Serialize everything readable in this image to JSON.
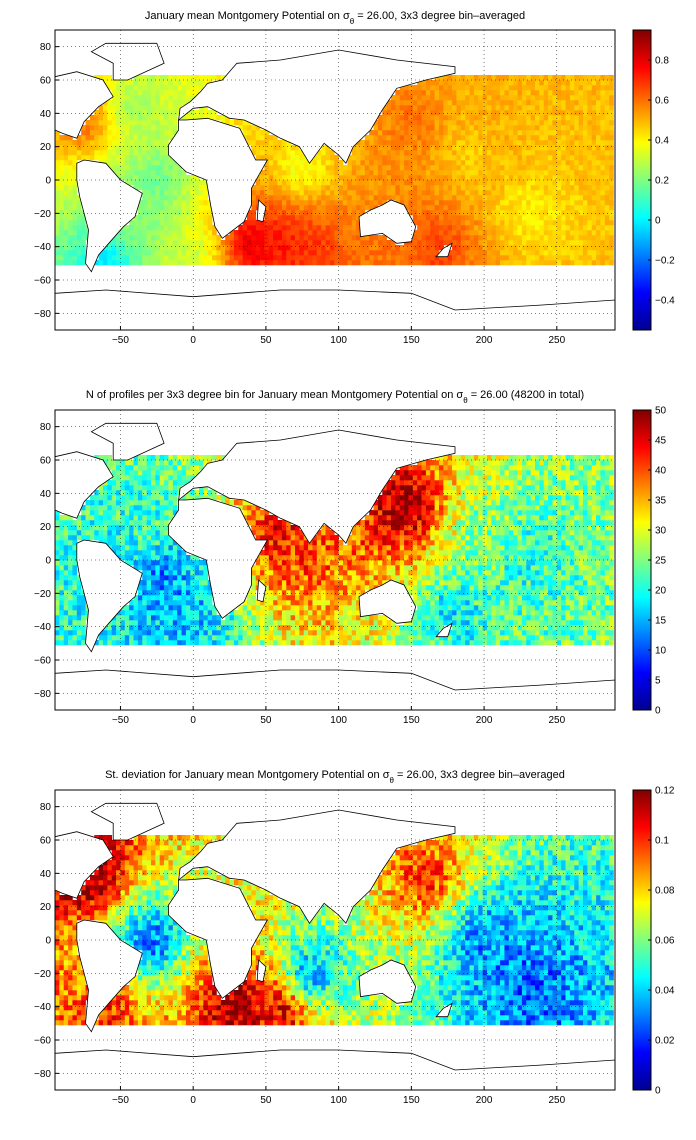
{
  "chart_data": [
    {
      "type": "heatmap",
      "title_prefix": "January mean Montgomery Potential on ",
      "title_sigma": "σ",
      "title_sub": "θ",
      "title_suffix": " = 26.00, 3x3 degree bin–averaged",
      "xlim": [
        -95,
        290
      ],
      "ylim": [
        -90,
        90
      ],
      "x_ticks": [
        -50,
        0,
        50,
        100,
        150,
        200,
        250
      ],
      "y_ticks": [
        -80,
        -60,
        -40,
        -20,
        0,
        20,
        40,
        60,
        80
      ],
      "colorbar": {
        "min": -0.55,
        "max": 0.95,
        "ticks": [
          -0.4,
          -0.2,
          0,
          0.2,
          0.4,
          0.6,
          0.8
        ]
      },
      "grid": true,
      "cells": [
        {
          "x": 40,
          "y": -38,
          "v": 0.85
        },
        {
          "x": 60,
          "y": -38,
          "v": 0.75
        },
        {
          "x": 80,
          "y": -40,
          "v": 0.7
        },
        {
          "x": -75,
          "y": 35,
          "v": 0.62
        },
        {
          "x": 170,
          "y": -40,
          "v": 0.68
        },
        {
          "x": 150,
          "y": 35,
          "v": 0.6
        },
        {
          "x": 210,
          "y": 30,
          "v": 0.5
        },
        {
          "x": 190,
          "y": 15,
          "v": 0.45
        },
        {
          "x": 230,
          "y": -20,
          "v": 0.4
        },
        {
          "x": -25,
          "y": 0,
          "v": 0.15
        },
        {
          "x": -30,
          "y": -20,
          "v": 0.2
        },
        {
          "x": 75,
          "y": 5,
          "v": 0.35
        },
        {
          "x": -40,
          "y": 45,
          "v": 0.25
        },
        {
          "x": 0,
          "y": -45,
          "v": 0.3
        },
        {
          "x": -60,
          "y": -50,
          "v": -0.05
        }
      ]
    },
    {
      "type": "heatmap",
      "title_prefix": "N of profiles per 3x3 degree bin for January mean Montgomery Potential on ",
      "title_sigma": "σ",
      "title_sub": "θ",
      "title_suffix": " = 26.00 (48200 in total)",
      "xlim": [
        -95,
        290
      ],
      "ylim": [
        -90,
        90
      ],
      "x_ticks": [
        -50,
        0,
        50,
        100,
        150,
        200,
        250
      ],
      "y_ticks": [
        -80,
        -60,
        -40,
        -20,
        0,
        20,
        40,
        60,
        80
      ],
      "colorbar": {
        "min": 0,
        "max": 50,
        "ticks": [
          0,
          5,
          10,
          15,
          20,
          25,
          30,
          35,
          40,
          45,
          50
        ]
      },
      "grid": true,
      "cells": [
        {
          "x": 145,
          "y": 32,
          "v": 50
        },
        {
          "x": 60,
          "y": 15,
          "v": 45
        },
        {
          "x": 75,
          "y": 10,
          "v": 40
        },
        {
          "x": 200,
          "y": 20,
          "v": 25
        },
        {
          "x": -30,
          "y": 20,
          "v": 22
        },
        {
          "x": 0,
          "y": -30,
          "v": 15
        },
        {
          "x": 180,
          "y": -30,
          "v": 18
        },
        {
          "x": 230,
          "y": 0,
          "v": 20
        },
        {
          "x": -20,
          "y": -10,
          "v": 12
        }
      ]
    },
    {
      "type": "heatmap",
      "title_prefix": "St. deviation for January mean Montgomery Potential on ",
      "title_sigma": "σ",
      "title_sub": "θ",
      "title_suffix": " = 26.00, 3x3 degree bin–averaged",
      "xlim": [
        -95,
        290
      ],
      "ylim": [
        -90,
        90
      ],
      "x_ticks": [
        -50,
        0,
        50,
        100,
        150,
        200,
        250
      ],
      "y_ticks": [
        -80,
        -60,
        -40,
        -20,
        0,
        20,
        40,
        60,
        80
      ],
      "colorbar": {
        "min": 0,
        "max": 0.12,
        "ticks": [
          0,
          0.02,
          0.04,
          0.06,
          0.08,
          0.1,
          0.12
        ]
      },
      "grid": true,
      "cells": [
        {
          "x": -70,
          "y": 40,
          "v": 0.12
        },
        {
          "x": 30,
          "y": -40,
          "v": 0.12
        },
        {
          "x": 60,
          "y": -42,
          "v": 0.11
        },
        {
          "x": -60,
          "y": -45,
          "v": 0.1
        },
        {
          "x": 160,
          "y": 38,
          "v": 0.1
        },
        {
          "x": 200,
          "y": 0,
          "v": 0.03
        },
        {
          "x": -30,
          "y": 0,
          "v": 0.025
        },
        {
          "x": 80,
          "y": -20,
          "v": 0.03
        },
        {
          "x": 230,
          "y": -30,
          "v": 0.025
        }
      ]
    }
  ]
}
